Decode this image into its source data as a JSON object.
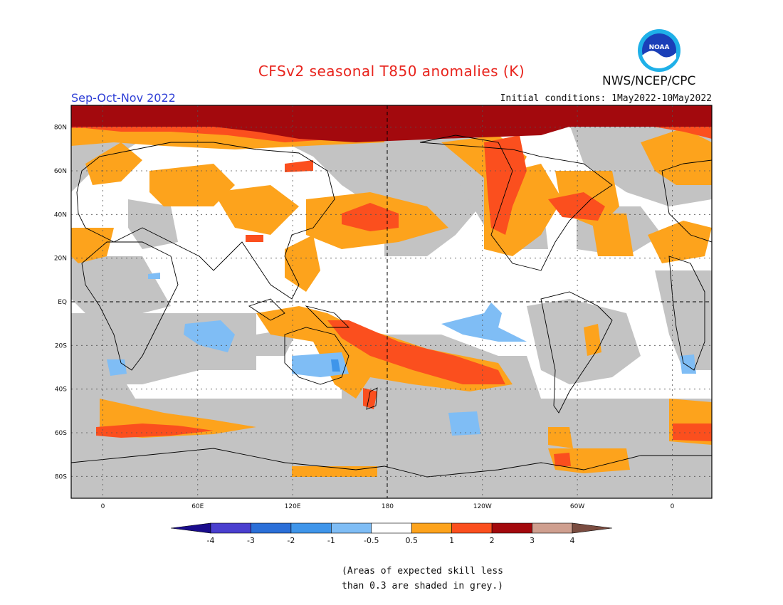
{
  "header": {
    "title": "CFSv2 seasonal T850 anomalies (K)",
    "season": "Sep-Oct-Nov 2022",
    "initial_conditions": "Initial conditions: 1May2022-10May2022",
    "organization": "NWS/NCEP/CPC",
    "logo_text": "NOAA"
  },
  "map": {
    "lat_labels": [
      "80N",
      "60N",
      "40N",
      "20N",
      "EQ",
      "20S",
      "40S",
      "60S",
      "80S"
    ],
    "lat_values": [
      80,
      60,
      40,
      20,
      0,
      -20,
      -40,
      -60,
      -80
    ],
    "lon_labels": [
      "0",
      "60E",
      "120E",
      "180",
      "120W",
      "60W",
      "0"
    ],
    "lon_values": [
      0,
      60,
      120,
      180,
      240,
      300,
      360
    ],
    "lon_range": [
      -20,
      385
    ],
    "lat_range": [
      -90,
      90
    ],
    "skill_mask_color": "#c3c3c3"
  },
  "colorbar": {
    "labels": [
      "-4",
      "-3",
      "-2",
      "-1",
      "-0.5",
      "0.5",
      "1",
      "2",
      "3",
      "4"
    ],
    "colors": [
      "#1a0c8c",
      "#4a3fcf",
      "#2b6fd8",
      "#3f95ea",
      "#7fbdf5",
      "#ffffff",
      "#fda31c",
      "#fb4f1e",
      "#a3090d",
      "#cf9f8f",
      "#7a4c40"
    ]
  },
  "note": {
    "line1": "(Areas of expected skill less",
    "line2": "than 0.3 are shaded in grey.)"
  }
}
